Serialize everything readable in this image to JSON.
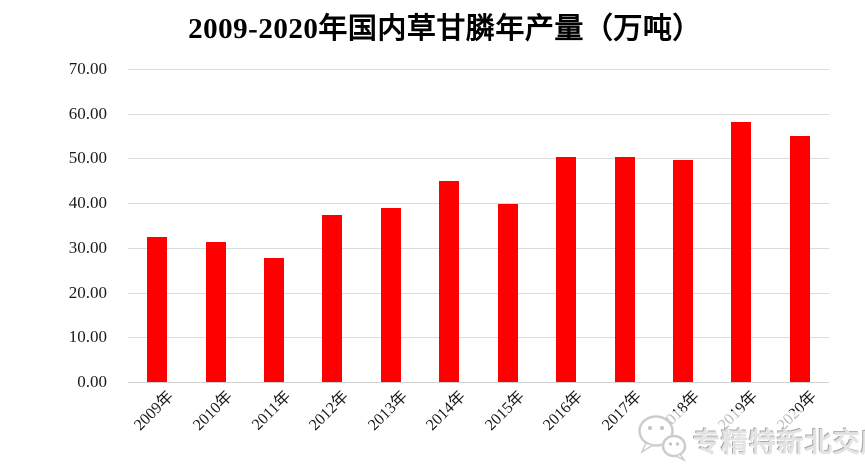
{
  "title": "2009-2020年国内草甘膦年产量（万吨）",
  "watermark": {
    "icon": "wechat-logo",
    "text": "专精特新北交所"
  },
  "chart_data": {
    "type": "bar",
    "title": "2009-2020年国内草甘膦年产量（万吨）",
    "categories": [
      "2009年",
      "2010年",
      "2011年",
      "2012年",
      "2013年",
      "2014年",
      "2015年",
      "2016年",
      "2017年",
      "2018年",
      "2019年",
      "2020年"
    ],
    "values": [
      32.5,
      31.3,
      27.7,
      37.3,
      39.0,
      45.0,
      39.9,
      50.4,
      50.4,
      49.6,
      58.1,
      55.0
    ],
    "unit": "万吨",
    "xlabel": "",
    "ylabel": "",
    "ylim": [
      0,
      70
    ],
    "ytick_step": 10,
    "ytick_labels": [
      "0.00",
      "10.00",
      "20.00",
      "30.00",
      "40.00",
      "50.00",
      "60.00",
      "70.00"
    ],
    "bar_color": "#ff0000",
    "grid": true,
    "gridline_color": "#dcdcdc",
    "baseline_color": "#d0d0d0",
    "legend_position": "none"
  }
}
